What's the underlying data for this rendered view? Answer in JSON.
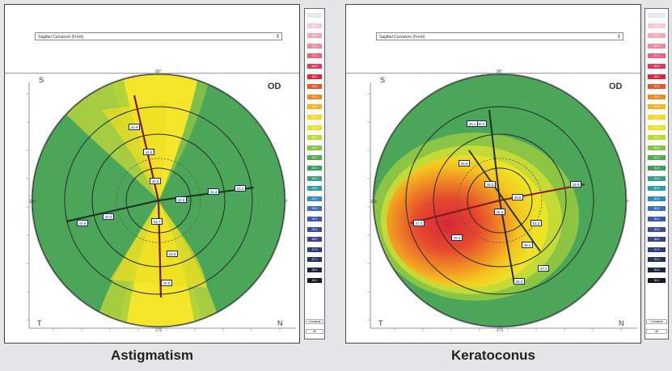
{
  "panels": [
    {
      "caption": "Astigmatism",
      "dropdown": "Sagittal Curvature (Front)",
      "eye_label": "OD",
      "corner_top": "S",
      "corner_left": "T",
      "corner_right": "N",
      "markers": [
        {
          "text": "40.9"
        },
        {
          "text": "44.5"
        },
        {
          "text": "44.8"
        },
        {
          "text": "43.5"
        },
        {
          "text": "43.4"
        },
        {
          "text": "43.2"
        },
        {
          "text": "42.7"
        },
        {
          "text": "44.8"
        },
        {
          "text": "45.9"
        },
        {
          "text": "46.9"
        },
        {
          "text": "44.6"
        }
      ]
    },
    {
      "caption": "Keratoconus",
      "dropdown": "Sagittal Curvature (Front)",
      "eye_label": "OD",
      "corner_top": "S",
      "corner_left": "T",
      "corner_right": "N",
      "markers": [
        {
          "text": "46.8"
        },
        {
          "text": "46.8"
        },
        {
          "text": "48.5"
        },
        {
          "text": "46.5"
        },
        {
          "text": "48.8"
        },
        {
          "text": "51.2"
        },
        {
          "text": "49.9"
        },
        {
          "text": "48.2"
        },
        {
          "text": "47.7"
        },
        {
          "text": "45.0"
        },
        {
          "text": "47.5"
        },
        {
          "text": "49.3"
        },
        {
          "text": "46.1"
        }
      ]
    }
  ],
  "legend_colors": [
    "#e7e7f0",
    "#f4c8d4",
    "#f2a8b8",
    "#ee8aa0",
    "#e8607c",
    "#e13c5a",
    "#d62a3c",
    "#e4572a",
    "#ee8a22",
    "#f4b41e",
    "#f6d81c",
    "#e8e31c",
    "#bcd82c",
    "#86c442",
    "#4fae4a",
    "#3c9e5c",
    "#3aa088",
    "#2f9ea8",
    "#2a8ec4",
    "#3a6fc0",
    "#3c55b0",
    "#3c4aa0",
    "#3c3f90",
    "#323a7a",
    "#28305e",
    "#1e2440",
    "#151820"
  ],
  "legend_footer": {
    "caption_1": "Curvature",
    "caption_2": "dk"
  },
  "legend_values": [
    "49.0",
    "48.5",
    "48.0",
    "47.5",
    "47.0",
    "46.5",
    "46.0",
    "45.5",
    "45.0",
    "44.5",
    "44.0",
    "43.5",
    "43.0",
    "42.5",
    "42.0",
    "41.5",
    "41.0",
    "40.5",
    "40.0",
    "39.5",
    "39.0",
    "38.5",
    "38.0",
    "37.5",
    "37.0",
    "36.5",
    "36.0"
  ]
}
